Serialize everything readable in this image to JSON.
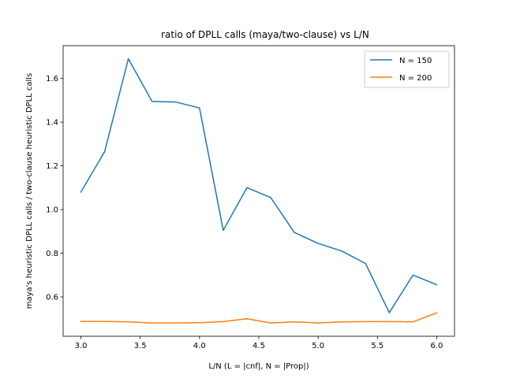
{
  "chart_data": {
    "type": "line",
    "title": "ratio of DPLL calls (maya/two-clause) vs L/N",
    "xlabel": "L/N (L = |cnf|, N = |Prop|)",
    "ylabel": "maya's heuristic DPLL calls / two-clause heuristic DPLL calls",
    "x": [
      3.0,
      3.2,
      3.4,
      3.6,
      3.8,
      4.0,
      4.2,
      4.4,
      4.6,
      4.8,
      5.0,
      5.2,
      5.4,
      5.6,
      5.8,
      6.0
    ],
    "series": [
      {
        "name": "N = 150",
        "color": "#1f77b4",
        "values": [
          1.08,
          1.265,
          1.69,
          1.495,
          1.492,
          1.465,
          0.905,
          1.1,
          1.055,
          0.895,
          0.845,
          0.81,
          0.753,
          0.528,
          0.7,
          0.656
        ]
      },
      {
        "name": "N = 200",
        "color": "#ff7f0e",
        "values": [
          0.488,
          0.488,
          0.486,
          0.481,
          0.481,
          0.482,
          0.487,
          0.5,
          0.481,
          0.486,
          0.481,
          0.486,
          0.487,
          0.487,
          0.486,
          0.527
        ]
      }
    ],
    "xlim": [
      2.85,
      6.15
    ],
    "ylim": [
      0.42,
      1.75
    ],
    "xticks": [
      3.0,
      3.5,
      4.0,
      4.5,
      5.0,
      5.5,
      6.0
    ],
    "xtick_labels": [
      "3.0",
      "3.5",
      "4.0",
      "4.5",
      "5.0",
      "5.5",
      "6.0"
    ],
    "yticks": [
      0.6,
      0.8,
      1.0,
      1.2,
      1.4,
      1.6
    ],
    "ytick_labels": [
      "0.6",
      "0.8",
      "1.0",
      "1.2",
      "1.4",
      "1.6"
    ],
    "grid": false,
    "legend_position": "top-right"
  }
}
